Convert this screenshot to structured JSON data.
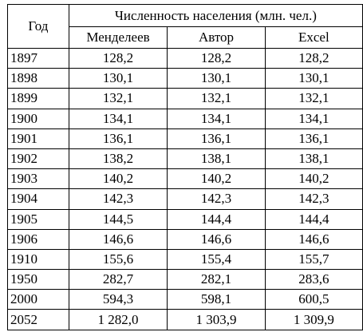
{
  "table": {
    "header": {
      "year": "Год",
      "group": "Численность населения (млн. чел.)",
      "columns": [
        "Менделеев",
        "Автор",
        "Excel"
      ]
    },
    "rows": [
      [
        "1897",
        "128,2",
        "128,2",
        "128,2"
      ],
      [
        "1898",
        "130,1",
        "130,1",
        "130,1"
      ],
      [
        "1899",
        "132,1",
        "132,1",
        "132,1"
      ],
      [
        "1900",
        "134,1",
        "134,1",
        "134,1"
      ],
      [
        "1901",
        "136,1",
        "136,1",
        "136,1"
      ],
      [
        "1902",
        "138,2",
        "138,1",
        "138,1"
      ],
      [
        "1903",
        "140,2",
        "140,2",
        "140,2"
      ],
      [
        "1904",
        "142,3",
        "142,3",
        "142,3"
      ],
      [
        "1905",
        "144,5",
        "144,4",
        "144,4"
      ],
      [
        "1906",
        "146,6",
        "146,6",
        "146,6"
      ],
      [
        "1910",
        "155,6",
        "155,4",
        "155,7"
      ],
      [
        "1950",
        "282,7",
        "282,1",
        "283,6"
      ],
      [
        "2000",
        "594,3",
        "598,1",
        "600,5"
      ],
      [
        "2052",
        "1 282,0",
        "1 303,9",
        "1 309,9"
      ]
    ]
  }
}
